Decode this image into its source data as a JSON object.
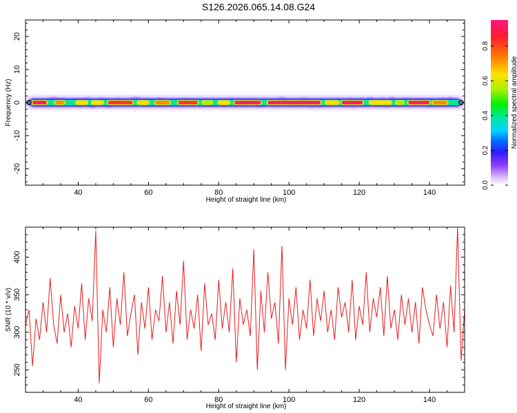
{
  "title": "S126.2026.065.14.08.G24",
  "colors": {
    "snr_line": "#e8191c",
    "track_core": "#0d0d0d",
    "background": "#ffffff",
    "axis": "#000000"
  },
  "chart_data": [
    {
      "type": "heatmap",
      "title": "",
      "xlabel": "Height of straight line (km)",
      "ylabel": "Frequency (Hz)",
      "xlim": [
        25,
        150
      ],
      "ylim": [
        -25,
        25
      ],
      "xticks": [
        40,
        60,
        80,
        100,
        120,
        140
      ],
      "yticks": [
        -20,
        -10,
        0,
        10,
        20
      ],
      "colorbar": {
        "label": "Normalized spectral amplitude",
        "range": [
          0,
          0.95
        ],
        "ticks": [
          0.0,
          0.2,
          0.4,
          0.6,
          0.8
        ],
        "colormap": "rainbow"
      },
      "frequency_track_hz": 0,
      "peak_amplitude_segments": [
        {
          "x": [
            27,
            31
          ],
          "amp": 0.9
        },
        {
          "x": [
            33.5,
            36
          ],
          "amp": 0.75
        },
        {
          "x": [
            39.5,
            42.5
          ],
          "amp": 0.65
        },
        {
          "x": [
            44,
            47
          ],
          "amp": 0.6
        },
        {
          "x": [
            48.5,
            55.5
          ],
          "amp": 0.85
        },
        {
          "x": [
            57,
            60
          ],
          "amp": 0.6
        },
        {
          "x": [
            62,
            66
          ],
          "amp": 0.7
        },
        {
          "x": [
            68.5,
            74
          ],
          "amp": 0.85
        },
        {
          "x": [
            75.5,
            78
          ],
          "amp": 0.55
        },
        {
          "x": [
            80,
            83
          ],
          "amp": 0.65
        },
        {
          "x": [
            84.5,
            92
          ],
          "amp": 0.9
        },
        {
          "x": [
            94,
            109
          ],
          "amp": 0.95
        },
        {
          "x": [
            110.5,
            114
          ],
          "amp": 0.6
        },
        {
          "x": [
            115,
            121
          ],
          "amp": 0.9
        },
        {
          "x": [
            123,
            129
          ],
          "amp": 0.65
        },
        {
          "x": [
            130.5,
            132.5
          ],
          "amp": 0.55
        },
        {
          "x": [
            134,
            140
          ],
          "amp": 0.9
        },
        {
          "x": [
            141,
            145
          ],
          "amp": 0.7
        }
      ]
    },
    {
      "type": "line",
      "title": "",
      "xlabel": "Height of straight line (km)",
      "ylabel": "SNR (10 * v/v)",
      "xlim": [
        25,
        150
      ],
      "ylim": [
        220,
        440
      ],
      "xticks": [
        40,
        60,
        80,
        100,
        120,
        140
      ],
      "yticks": [
        250,
        300,
        350,
        400
      ],
      "series": [
        {
          "x": [
            25,
            26,
            27,
            28,
            29,
            30,
            31,
            32,
            33,
            34,
            35,
            36,
            37,
            38,
            39,
            40,
            41,
            42,
            43,
            44,
            45,
            46,
            47,
            48,
            49,
            50,
            51,
            52,
            53,
            54,
            55,
            56,
            57,
            58,
            59,
            60,
            61,
            62,
            63,
            64,
            65,
            66,
            67,
            68,
            69,
            70,
            71,
            72,
            73,
            74,
            75,
            76,
            77,
            78,
            79,
            80,
            81,
            82,
            83,
            84,
            85,
            86,
            87,
            88,
            89,
            90,
            91,
            92,
            93,
            94,
            95,
            96,
            97,
            98,
            99,
            100,
            101,
            102,
            103,
            104,
            105,
            106,
            107,
            108,
            109,
            110,
            111,
            112,
            113,
            114,
            115,
            116,
            117,
            118,
            119,
            120,
            121,
            122,
            123,
            124,
            125,
            126,
            127,
            128,
            129,
            130,
            131,
            132,
            133,
            134,
            135,
            136,
            137,
            138,
            139,
            140,
            141,
            142,
            143,
            144,
            145,
            146,
            147,
            148,
            149,
            150
          ],
          "values": [
            310,
            330,
            255,
            318,
            290,
            340,
            300,
            372,
            310,
            285,
            350,
            300,
            325,
            280,
            335,
            305,
            365,
            290,
            345,
            315,
            435,
            232,
            330,
            300,
            360,
            280,
            345,
            310,
            380,
            295,
            325,
            350,
            270,
            340,
            305,
            360,
            290,
            330,
            315,
            375,
            300,
            340,
            285,
            355,
            310,
            395,
            290,
            330,
            305,
            350,
            275,
            365,
            310,
            325,
            290,
            370,
            305,
            340,
            300,
            385,
            260,
            345,
            310,
            330,
            295,
            410,
            250,
            355,
            300,
            380,
            318,
            340,
            285,
            415,
            250,
            345,
            310,
            360,
            290,
            330,
            305,
            370,
            295,
            345,
            315,
            355,
            300,
            330,
            290,
            360,
            320,
            340,
            300,
            370,
            290,
            335,
            310,
            380,
            300,
            345,
            320,
            360,
            295,
            375,
            305,
            330,
            290,
            350,
            310,
            345,
            300,
            340,
            285,
            360,
            330,
            310,
            295,
            350,
            305,
            340,
            280,
            362,
            300,
            440,
            262,
            330
          ]
        }
      ]
    }
  ]
}
